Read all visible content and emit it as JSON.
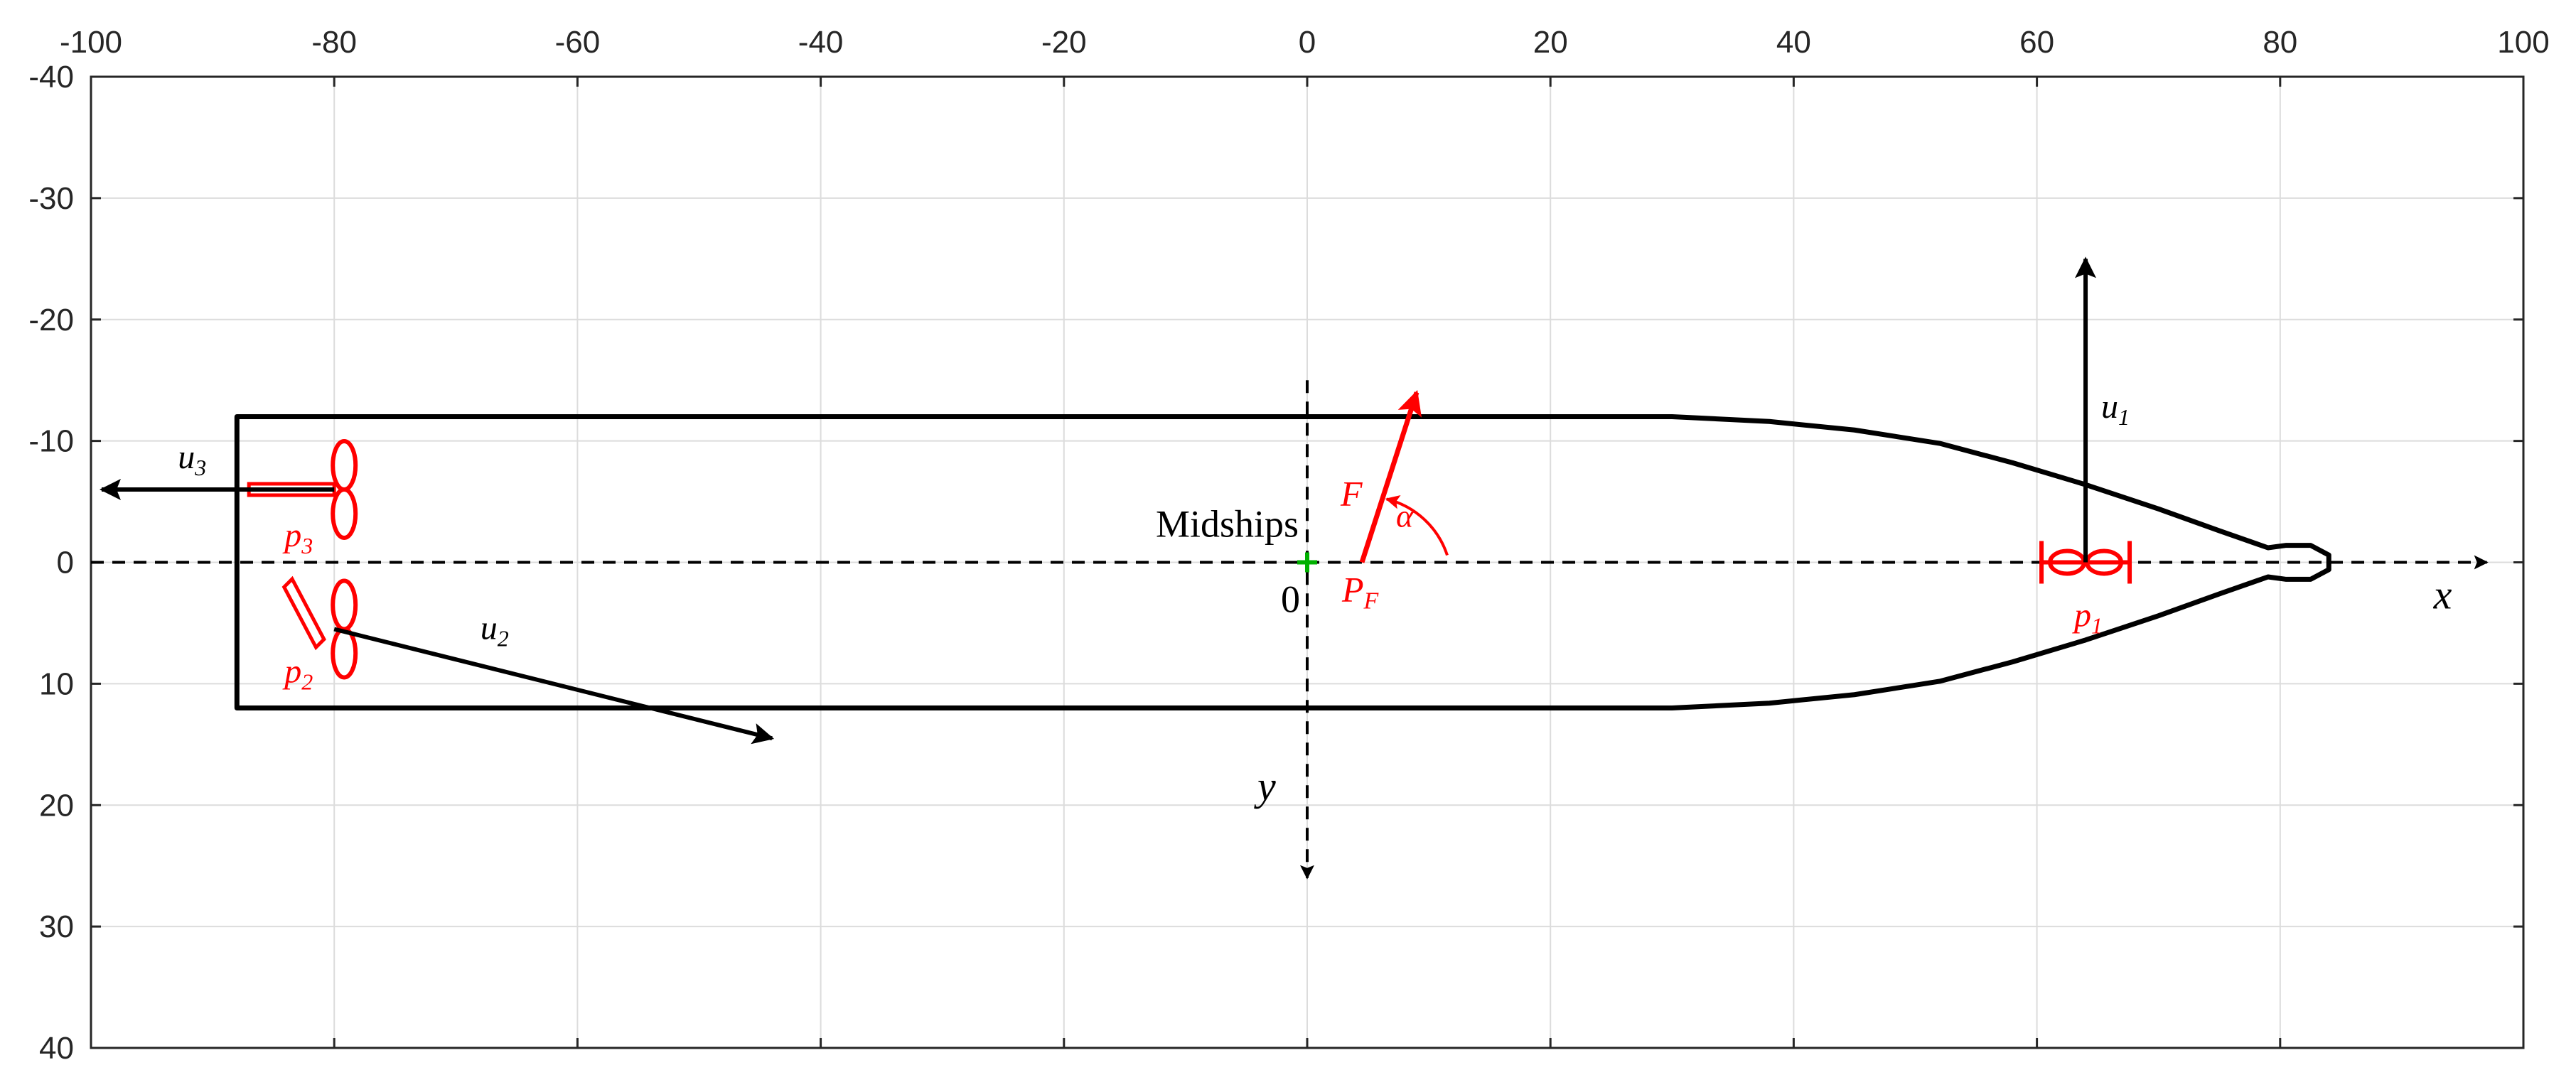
{
  "axes": {
    "xlim": [
      -100,
      100
    ],
    "ylim": [
      -40,
      40
    ],
    "y_direction": "down",
    "x_axis_location": "top",
    "x_ticks": [
      -100,
      -80,
      -60,
      -40,
      -20,
      0,
      20,
      40,
      60,
      80,
      100
    ],
    "y_ticks": [
      -40,
      -30,
      -20,
      -10,
      0,
      10,
      20,
      30,
      40
    ],
    "x_tick_labels": [
      "-100",
      "-80",
      "-60",
      "-40",
      "-20",
      "0",
      "20",
      "40",
      "60",
      "80",
      "100"
    ],
    "y_tick_labels": [
      "-40",
      "-30",
      "-20",
      "-10",
      "0",
      "10",
      "20",
      "30",
      "40"
    ],
    "grid": true
  },
  "colors": {
    "axis": "#262626",
    "grid": "#dcdcdc",
    "hull": "#000000",
    "thruster": "#ff0000",
    "force": "#ff0000",
    "midships_marker": "#00b000"
  },
  "hull": {
    "points": [
      [
        -88,
        -12
      ],
      [
        30,
        -12
      ],
      [
        38,
        -11.6
      ],
      [
        45,
        -10.9
      ],
      [
        52,
        -9.8
      ],
      [
        58,
        -8.2
      ],
      [
        64,
        -6.4
      ],
      [
        70,
        -4.4
      ],
      [
        75,
        -2.6
      ],
      [
        79,
        -1.2
      ],
      [
        80.5,
        -1.4
      ],
      [
        82.5,
        -1.4
      ],
      [
        84,
        -0.6
      ],
      [
        84,
        0.6
      ],
      [
        82.5,
        1.4
      ],
      [
        80.5,
        1.4
      ],
      [
        79,
        1.2
      ],
      [
        75,
        2.6
      ],
      [
        70,
        4.4
      ],
      [
        64,
        6.4
      ],
      [
        58,
        8.2
      ],
      [
        52,
        9.8
      ],
      [
        45,
        10.9
      ],
      [
        38,
        11.6
      ],
      [
        30,
        12
      ],
      [
        -88,
        12
      ]
    ]
  },
  "reference_axes": {
    "x_axis": {
      "from": [
        -100,
        0
      ],
      "to": [
        97,
        0
      ],
      "label": "x"
    },
    "y_axis": {
      "from": [
        0,
        -15
      ],
      "to": [
        0,
        26
      ],
      "label": "y"
    }
  },
  "midships": {
    "label": "Midships",
    "origin_label": "0",
    "position": [
      0,
      0
    ]
  },
  "force": {
    "label": "F",
    "point_label": "P",
    "point_label_sub": "F",
    "angle_label": "α",
    "from": [
      4.5,
      0
    ],
    "to": [
      9,
      -14
    ]
  },
  "thrusters": [
    {
      "id": "p1",
      "label": "p",
      "sub": "1",
      "position": [
        64,
        0
      ],
      "type": "tunnel"
    },
    {
      "id": "p2",
      "label": "p",
      "sub": "2",
      "position": [
        -80,
        5.5
      ],
      "type": "azimuth",
      "direction_deg": 45
    },
    {
      "id": "p3",
      "label": "p",
      "sub": "3",
      "position": [
        -80,
        -6
      ],
      "type": "azimuth",
      "direction_deg": 0
    }
  ],
  "thrust_vectors": [
    {
      "id": "u1",
      "label": "u",
      "sub": "1",
      "from": [
        64,
        0
      ],
      "to": [
        64,
        -25
      ]
    },
    {
      "id": "u2",
      "label": "u",
      "sub": "2",
      "from": [
        -80,
        5.5
      ],
      "to": [
        -44,
        14.5
      ]
    },
    {
      "id": "u3",
      "label": "u",
      "sub": "3",
      "from": [
        -80,
        -6
      ],
      "to": [
        -100,
        -6
      ]
    }
  ]
}
